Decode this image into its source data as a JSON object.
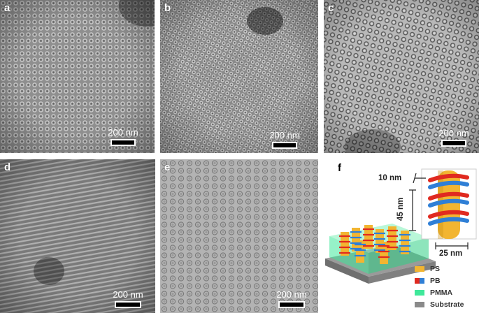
{
  "panels": [
    {
      "id": "a",
      "label": "a",
      "scale": "200 nm"
    },
    {
      "id": "b",
      "label": "b",
      "scale": "200 nm"
    },
    {
      "id": "c",
      "label": "c",
      "scale": "200 nm"
    },
    {
      "id": "d",
      "label": "d",
      "scale": "200 nm"
    },
    {
      "id": "e",
      "label": "e",
      "scale": "200 nm"
    },
    {
      "id": "f",
      "label": "f"
    }
  ],
  "schematic": {
    "pitch_label": "10 nm",
    "height_label": "45 nm",
    "width_label": "25 nm",
    "legend": [
      {
        "label": "PS",
        "colors": [
          "#f2b531"
        ]
      },
      {
        "label": "PB",
        "colors": [
          "#e02a20",
          "#2f7fd6"
        ]
      },
      {
        "label": "PMMA",
        "colors": [
          "#3fe89a"
        ]
      },
      {
        "label": "Substrate",
        "colors": [
          "#8a8a8a"
        ]
      }
    ]
  }
}
